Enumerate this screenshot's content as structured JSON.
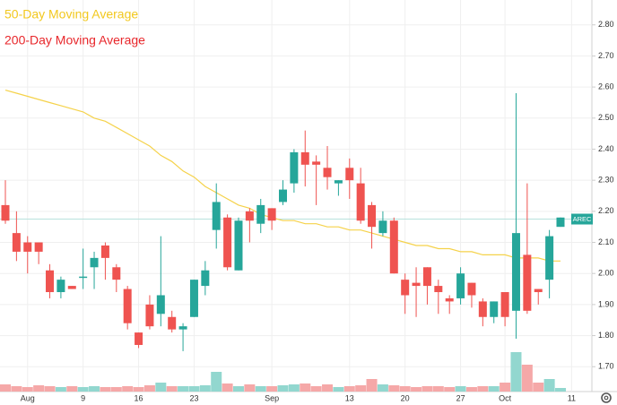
{
  "chart_data": {
    "type": "candlestick",
    "legend": [
      {
        "name": "50-Day Moving Average",
        "color": "#f2c81e"
      },
      {
        "name": "200-Day Moving Average",
        "color": "#e8272b"
      }
    ],
    "categories": [
      "",
      "",
      "Aug",
      "",
      "",
      "",
      "",
      "9",
      "",
      "",
      "",
      "",
      "16",
      "",
      "",
      "",
      "",
      "23",
      "",
      "",
      "",
      "",
      "",
      "",
      "Sep",
      "",
      "",
      "",
      "",
      "",
      "",
      "13",
      "",
      "",
      "",
      "",
      "20",
      "",
      "",
      "",
      "",
      "27",
      "",
      "",
      "",
      "Oct",
      "",
      "",
      "",
      "",
      "",
      "11"
    ],
    "open": [
      2.22,
      2.13,
      2.1,
      2.1,
      2.01,
      1.94,
      1.96,
      1.99,
      2.02,
      2.09,
      2.02,
      1.95,
      1.81,
      1.9,
      1.87,
      1.86,
      1.82,
      1.86,
      1.96,
      2.14,
      2.18,
      2.01,
      2.2,
      2.16,
      2.21,
      2.23,
      2.29,
      2.39,
      2.36,
      2.34,
      2.29,
      2.34,
      2.29,
      2.22,
      2.13,
      2.17,
      1.98,
      1.97,
      2.02,
      1.96,
      1.92,
      1.92,
      1.97,
      1.91,
      1.86,
      1.94,
      1.88,
      2.06,
      1.95,
      1.98,
      2.15,
      null
    ],
    "high": [
      2.3,
      2.2,
      2.12,
      2.1,
      2.03,
      1.99,
      1.96,
      2.08,
      2.07,
      2.1,
      2.03,
      1.96,
      1.81,
      1.93,
      2.12,
      1.88,
      1.84,
      1.98,
      2.04,
      2.29,
      2.19,
      2.18,
      2.21,
      2.24,
      2.21,
      2.3,
      2.4,
      2.46,
      2.38,
      2.41,
      2.3,
      2.37,
      2.34,
      2.23,
      2.2,
      2.18,
      2.0,
      2.02,
      2.02,
      1.98,
      1.93,
      2.02,
      1.97,
      1.92,
      1.91,
      1.94,
      2.58,
      2.29,
      1.95,
      2.14,
      2.18,
      null
    ],
    "low": [
      2.16,
      2.04,
      2.0,
      2.03,
      1.92,
      1.92,
      1.95,
      1.95,
      1.95,
      1.98,
      1.94,
      1.82,
      1.76,
      1.82,
      1.83,
      1.81,
      1.75,
      1.86,
      1.93,
      2.08,
      2.01,
      2.01,
      2.1,
      2.13,
      2.14,
      2.22,
      2.26,
      2.28,
      2.22,
      2.27,
      2.25,
      2.24,
      2.16,
      2.08,
      2.12,
      2.0,
      1.87,
      1.86,
      1.9,
      1.87,
      1.87,
      1.9,
      1.89,
      1.83,
      1.84,
      1.83,
      1.79,
      1.87,
      1.9,
      1.92,
      2.15,
      null
    ],
    "close": [
      2.17,
      2.07,
      2.07,
      2.07,
      1.94,
      1.98,
      1.95,
      1.99,
      2.05,
      2.05,
      1.98,
      1.84,
      1.77,
      1.83,
      1.93,
      1.82,
      1.83,
      1.98,
      2.01,
      2.23,
      2.02,
      2.17,
      2.17,
      2.22,
      2.17,
      2.27,
      2.39,
      2.35,
      2.35,
      2.31,
      2.3,
      2.3,
      2.17,
      2.15,
      2.17,
      2.0,
      1.93,
      1.96,
      1.96,
      1.94,
      1.91,
      2.0,
      1.93,
      1.86,
      1.91,
      1.86,
      2.13,
      1.88,
      1.94,
      2.12,
      2.18,
      null
    ],
    "volume": [
      8,
      6,
      5,
      7,
      6,
      5,
      6,
      5,
      6,
      5,
      5,
      6,
      5,
      7,
      10,
      6,
      6,
      6,
      7,
      22,
      9,
      6,
      8,
      6,
      6,
      7,
      8,
      9,
      6,
      8,
      5,
      6,
      7,
      14,
      8,
      7,
      6,
      5,
      6,
      6,
      5,
      6,
      5,
      6,
      6,
      10,
      44,
      30,
      10,
      14,
      4,
      null
    ],
    "ma": {
      "name": "50-Day Moving Average",
      "color": "#f5d24a",
      "values": [
        2.59,
        2.58,
        2.57,
        2.56,
        2.55,
        2.54,
        2.53,
        2.52,
        2.5,
        2.49,
        2.47,
        2.45,
        2.43,
        2.41,
        2.38,
        2.36,
        2.33,
        2.31,
        2.28,
        2.26,
        2.24,
        2.22,
        2.21,
        2.19,
        2.18,
        2.17,
        2.17,
        2.16,
        2.16,
        2.15,
        2.15,
        2.14,
        2.14,
        2.13,
        2.12,
        2.11,
        2.1,
        2.09,
        2.09,
        2.08,
        2.08,
        2.07,
        2.07,
        2.06,
        2.06,
        2.06,
        2.05,
        2.05,
        2.05,
        2.04,
        2.04,
        null
      ]
    },
    "up_color": "#26a69a",
    "down_color": "#ef5350",
    "volume_up_color": "#92d7cf",
    "volume_down_color": "#f5a8a8",
    "last_price": {
      "value": 2.175,
      "label": "AREC",
      "color": "#26a69a"
    },
    "ylim": [
      1.62,
      2.88
    ],
    "vlim": [
      0,
      100
    ],
    "yticks": [
      {
        "value": 1.7,
        "label": "1.70"
      },
      {
        "value": 1.8,
        "label": "1.80"
      },
      {
        "value": 1.9,
        "label": "1.90"
      },
      {
        "value": 2.0,
        "label": "2.00"
      },
      {
        "value": 2.1,
        "label": "2.10"
      },
      {
        "value": 2.2,
        "label": "2.20"
      },
      {
        "value": 2.3,
        "label": "2.30"
      },
      {
        "value": 2.4,
        "label": "2.40"
      },
      {
        "value": 2.5,
        "label": "2.50"
      },
      {
        "value": 2.6,
        "label": "2.60"
      },
      {
        "value": 2.7,
        "label": "2.70"
      },
      {
        "value": 2.8,
        "label": "2.80"
      }
    ],
    "grid": true
  }
}
